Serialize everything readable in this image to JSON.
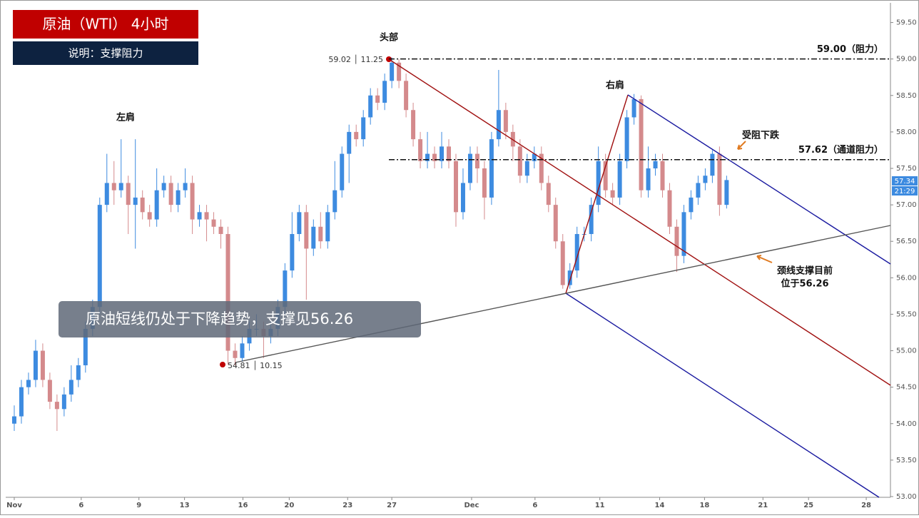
{
  "chart_data": {
    "type": "candlestick",
    "title": "原油（WTI） 4小时",
    "subtitle": "说明：支撑阻力",
    "banner": "原油短线仍处于下降趋势，支撑见56.26",
    "annotations": {
      "head": "头部",
      "left_shoulder": "左肩",
      "right_shoulder": "右肩",
      "resisted": "受阻下跌",
      "neckline_1": "颈线支撑目前",
      "neckline_2": "位于56.26",
      "head_info": "59.02 │ 11.25",
      "low_info": "54.81 │ 10.15",
      "last_price": "57.34",
      "countdown": "21:29"
    },
    "levels": [
      {
        "value": 59.0,
        "label": "59.00（阻力）"
      },
      {
        "value": 57.62,
        "label": "57.62（通道阻力）"
      }
    ],
    "up_color": "#3d8be0",
    "down_color": "#d48a8c",
    "xlim": [
      0,
      124
    ],
    "ylim": [
      52.99,
      59.76
    ],
    "xticks": [
      {
        "value": 1,
        "label": "Nov"
      },
      {
        "value": 10.4,
        "label": "6"
      },
      {
        "value": 18.5,
        "label": "9"
      },
      {
        "value": 24.9,
        "label": "13"
      },
      {
        "value": 33.1,
        "label": "16"
      },
      {
        "value": 39.6,
        "label": "20"
      },
      {
        "value": 47.8,
        "label": "23"
      },
      {
        "value": 54,
        "label": "27"
      },
      {
        "value": 65.2,
        "label": "Dec"
      },
      {
        "value": 74.1,
        "label": "6"
      },
      {
        "value": 83.2,
        "label": "11"
      },
      {
        "value": 91.6,
        "label": "14"
      },
      {
        "value": 97.9,
        "label": "18"
      },
      {
        "value": 106.1,
        "label": "21"
      },
      {
        "value": 112.5,
        "label": "25"
      },
      {
        "value": 120.6,
        "label": "28"
      }
    ],
    "yticks": [
      {
        "value": 53,
        "label": "53.00"
      },
      {
        "value": 53.5,
        "label": "53.50"
      },
      {
        "value": 54,
        "label": "54.00"
      },
      {
        "value": 54.5,
        "label": "54.50"
      },
      {
        "value": 55,
        "label": "55.00"
      },
      {
        "value": 55.5,
        "label": "55.50"
      },
      {
        "value": 56,
        "label": "56.00"
      },
      {
        "value": 56.5,
        "label": "56.50"
      },
      {
        "value": 57,
        "label": "57.00"
      },
      {
        "value": 57.5,
        "label": "57.50"
      },
      {
        "value": 58,
        "label": "58.00"
      },
      {
        "value": 58.5,
        "label": "58.50"
      },
      {
        "value": 59,
        "label": "59.00"
      },
      {
        "value": 59.5,
        "label": "59.50"
      }
    ],
    "x": [
      1,
      2,
      3,
      4,
      5,
      6,
      7,
      8,
      9,
      10,
      11,
      12,
      13,
      14,
      15,
      16,
      17,
      18,
      19,
      20,
      21,
      22,
      23,
      24,
      25,
      26,
      27,
      28,
      29,
      30,
      31,
      32,
      33,
      34,
      35,
      36,
      37,
      38,
      39,
      40,
      41,
      42,
      43,
      44,
      45,
      46,
      47,
      48,
      49,
      50,
      51,
      52,
      53,
      54,
      55,
      56,
      57,
      58,
      59,
      60,
      61,
      62,
      63,
      64,
      65,
      66,
      67,
      68,
      69,
      70,
      71,
      72,
      73,
      74,
      75,
      76,
      77,
      78,
      79,
      80,
      81,
      82,
      83,
      84,
      85,
      86,
      87,
      88,
      89,
      90,
      91,
      92,
      93,
      94,
      95,
      96,
      97,
      98,
      99,
      100,
      101
    ],
    "open": [
      54.0,
      54.1,
      54.5,
      54.6,
      55.0,
      54.6,
      54.3,
      54.2,
      54.4,
      54.6,
      54.8,
      55.3,
      55.6,
      57.0,
      57.3,
      57.2,
      57.3,
      57.0,
      57.1,
      56.9,
      56.8,
      57.2,
      57.3,
      57.0,
      57.2,
      57.3,
      56.8,
      56.9,
      56.8,
      56.7,
      56.6,
      55.0,
      54.9,
      55.1,
      55.3,
      55.3,
      55.2,
      55.3,
      55.6,
      56.1,
      56.6,
      56.9,
      56.4,
      56.7,
      56.5,
      56.9,
      57.2,
      57.7,
      58.0,
      57.9,
      58.2,
      58.5,
      58.4,
      58.7,
      58.95,
      58.7,
      58.3,
      57.9,
      57.6,
      57.7,
      57.6,
      57.8,
      57.6,
      56.9,
      57.3,
      57.7,
      57.5,
      57.1,
      57.9,
      58.3,
      58.0,
      57.8,
      57.4,
      57.6,
      57.7,
      57.3,
      57.0,
      56.5,
      55.9,
      56.1,
      56.6,
      56.6,
      57.0,
      57.6,
      57.2,
      57.1,
      57.6,
      58.2,
      58.45,
      57.2,
      57.5,
      57.6,
      57.2,
      56.7,
      56.3,
      56.9,
      57.1,
      57.3,
      57.4,
      57.7,
      57.0
    ],
    "high": [
      54.25,
      54.6,
      54.7,
      55.15,
      55.1,
      54.7,
      54.4,
      54.5,
      54.8,
      54.9,
      55.4,
      55.7,
      57.1,
      57.7,
      57.6,
      57.9,
      57.4,
      57.9,
      57.2,
      57.0,
      57.5,
      57.4,
      57.4,
      57.3,
      57.5,
      57.4,
      57.0,
      57.0,
      56.9,
      56.8,
      56.7,
      55.1,
      55.2,
      55.4,
      55.5,
      55.4,
      55.4,
      55.7,
      56.2,
      56.9,
      57.0,
      57.0,
      56.8,
      56.9,
      57.0,
      57.6,
      57.8,
      58.1,
      58.1,
      58.3,
      58.6,
      58.6,
      58.8,
      59.02,
      59.0,
      58.8,
      58.4,
      58.0,
      58.0,
      57.8,
      58.0,
      57.9,
      57.7,
      57.5,
      57.8,
      57.8,
      57.6,
      58.0,
      58.85,
      58.4,
      58.1,
      57.9,
      57.7,
      57.8,
      57.8,
      57.4,
      57.1,
      56.6,
      56.2,
      56.7,
      56.7,
      57.1,
      57.8,
      57.7,
      57.3,
      57.7,
      58.3,
      58.52,
      58.5,
      57.8,
      57.7,
      57.7,
      57.3,
      56.8,
      57.0,
      57.2,
      57.4,
      57.5,
      57.75,
      57.8,
      57.4
    ],
    "low": [
      53.9,
      54.0,
      54.4,
      54.5,
      54.5,
      54.2,
      53.9,
      54.1,
      54.3,
      54.5,
      54.7,
      55.2,
      55.5,
      56.9,
      57.0,
      57.1,
      56.6,
      56.4,
      56.8,
      56.7,
      56.7,
      57.1,
      56.9,
      56.9,
      57.1,
      56.6,
      56.7,
      56.5,
      56.6,
      56.4,
      54.81,
      54.8,
      54.85,
      55.0,
      55.2,
      54.9,
      55.1,
      55.2,
      55.5,
      56.0,
      56.5,
      55.7,
      56.3,
      56.4,
      56.4,
      56.8,
      57.1,
      57.3,
      57.8,
      57.8,
      58.1,
      58.3,
      58.3,
      58.6,
      58.6,
      58.2,
      57.8,
      57.5,
      57.5,
      57.5,
      57.5,
      57.5,
      56.7,
      56.8,
      57.2,
      57.3,
      56.8,
      57.0,
      57.8,
      57.9,
      57.6,
      57.3,
      57.3,
      57.5,
      57.2,
      56.9,
      56.4,
      55.85,
      55.85,
      56.0,
      56.5,
      56.5,
      56.9,
      57.1,
      57.0,
      57.0,
      57.5,
      58.1,
      57.1,
      57.1,
      57.4,
      57.1,
      56.6,
      56.08,
      56.2,
      56.8,
      57.0,
      57.2,
      57.3,
      56.85,
      56.95
    ],
    "close": [
      54.1,
      54.5,
      54.6,
      55.0,
      54.6,
      54.3,
      54.2,
      54.4,
      54.6,
      54.8,
      55.3,
      55.6,
      57.0,
      57.3,
      57.2,
      57.3,
      57.0,
      57.1,
      56.9,
      56.8,
      57.2,
      57.3,
      57.0,
      57.2,
      57.3,
      56.8,
      56.9,
      56.8,
      56.7,
      56.6,
      55.0,
      54.9,
      55.1,
      55.3,
      55.3,
      55.2,
      55.3,
      55.6,
      56.1,
      56.6,
      56.9,
      56.4,
      56.7,
      56.5,
      56.9,
      57.2,
      57.7,
      58.0,
      57.9,
      58.2,
      58.5,
      58.4,
      58.7,
      58.95,
      58.7,
      58.3,
      57.9,
      57.6,
      57.7,
      57.6,
      57.8,
      57.6,
      56.9,
      57.3,
      57.7,
      57.5,
      57.1,
      57.9,
      58.3,
      58.0,
      57.8,
      57.4,
      57.6,
      57.7,
      57.3,
      57.0,
      56.5,
      55.9,
      56.1,
      56.6,
      56.6,
      57.0,
      57.6,
      57.2,
      57.1,
      57.6,
      58.2,
      58.45,
      57.2,
      57.5,
      57.6,
      57.2,
      56.7,
      56.3,
      56.9,
      57.1,
      57.3,
      57.4,
      57.7,
      57.0,
      57.34
    ]
  }
}
